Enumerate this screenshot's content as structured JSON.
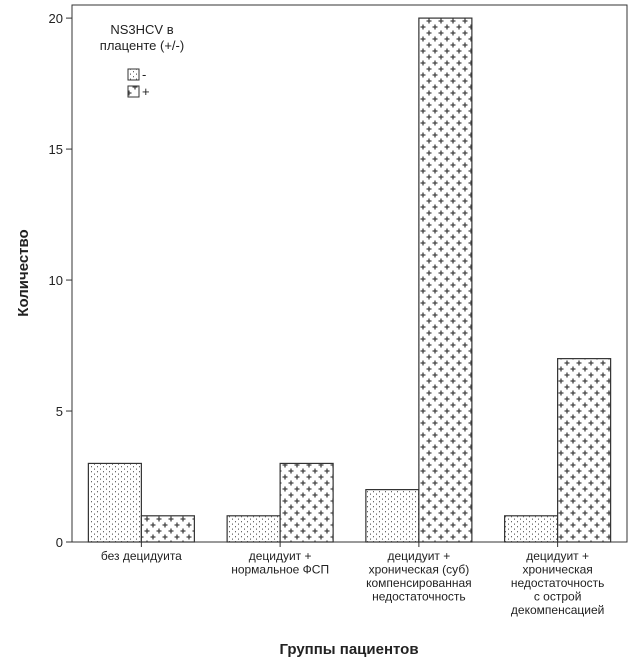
{
  "chart_data": {
    "type": "bar",
    "title": "",
    "xlabel": "Группы пациентов",
    "ylabel": "Количество",
    "ylim": [
      0,
      20.5
    ],
    "yticks": [
      0,
      5,
      10,
      15,
      20
    ],
    "grid": false,
    "legend": {
      "title_lines": [
        "NS3HCV в",
        "плаценте (+/-)"
      ],
      "placement": "top-left"
    },
    "categories": [
      [
        "без децидуита"
      ],
      [
        "децидуит +",
        "нормальное ФСП"
      ],
      [
        "децидуит +",
        "хроническая (суб)",
        "компенсированная",
        "недостаточность"
      ],
      [
        "децидуит +",
        "хроническая",
        "недостаточность",
        "с острой",
        "декомпенсацией"
      ]
    ],
    "series": [
      {
        "name": "-",
        "pattern": "dots",
        "values": [
          3,
          1,
          2,
          1
        ]
      },
      {
        "name": "+",
        "pattern": "crosses",
        "values": [
          1,
          3,
          20,
          7
        ]
      }
    ],
    "colors": {
      "bar_fill": "#ffffff",
      "bar_stroke": "#333333",
      "axis": "#333333",
      "pattern": "#555555"
    }
  }
}
